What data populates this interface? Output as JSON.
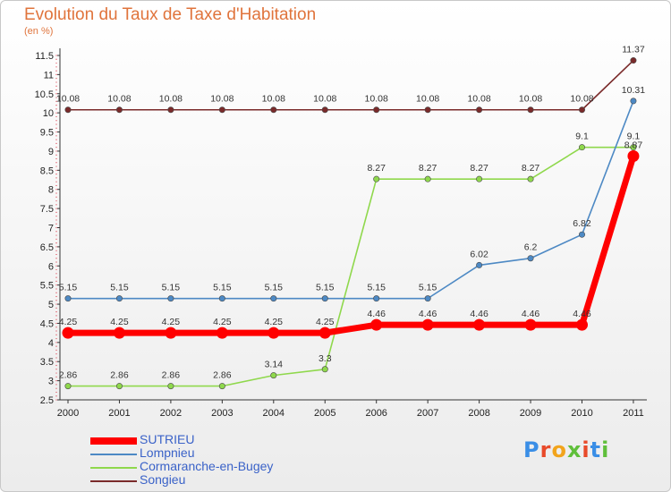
{
  "chart_data": {
    "type": "line",
    "title": "Evolution du Taux de Taxe d'Habitation",
    "unit_label": "(en %)",
    "categories": [
      "2000",
      "2001",
      "2002",
      "2003",
      "2004",
      "2005",
      "2006",
      "2007",
      "2008",
      "2009",
      "2010",
      "2011"
    ],
    "ylim": [
      2.5,
      11.5
    ],
    "yticks": [
      "2.5",
      "3",
      "3.5",
      "4",
      "4.5",
      "5",
      "5.5",
      "6",
      "6.5",
      "7",
      "7.5",
      "8",
      "8.5",
      "9",
      "9.5",
      "10",
      "10.5",
      "11",
      "11.5"
    ],
    "grid": false,
    "legend_position": "bottom-left",
    "series": [
      {
        "name": "SUTRIEU",
        "color": "#ff0000",
        "values": [
          4.25,
          4.25,
          4.25,
          4.25,
          4.25,
          4.25,
          4.46,
          4.46,
          4.46,
          4.46,
          4.46,
          8.87
        ],
        "labels": [
          "4.25",
          "4.25",
          "4.25",
          "4.25",
          "4.25",
          "4.25",
          "4.46",
          "4.46",
          "4.46",
          "4.46",
          "4.46",
          "8.87"
        ]
      },
      {
        "name": "Lompnieu",
        "color": "#4d89c4",
        "values": [
          5.15,
          5.15,
          5.15,
          5.15,
          5.15,
          5.15,
          5.15,
          5.15,
          6.02,
          6.2,
          6.82,
          10.31
        ],
        "labels": [
          "5.15",
          "5.15",
          "5.15",
          "5.15",
          "5.15",
          "5.15",
          "5.15",
          "5.15",
          "6.02",
          "6.2",
          "6.82",
          "10.31"
        ]
      },
      {
        "name": "Cormaranche-en-Bugey",
        "color": "#8fd84c",
        "values": [
          2.86,
          2.86,
          2.86,
          2.86,
          3.14,
          3.3,
          8.27,
          8.27,
          8.27,
          8.27,
          9.1,
          9.1
        ],
        "labels": [
          "2.86",
          "2.86",
          "2.86",
          "2.86",
          "3.14",
          "3.3",
          "8.27",
          "8.27",
          "8.27",
          "8.27",
          "9.1",
          "9.1"
        ]
      },
      {
        "name": "Songieu",
        "color": "#7a2a2a",
        "values": [
          10.08,
          10.08,
          10.08,
          10.08,
          10.08,
          10.08,
          10.08,
          10.08,
          10.08,
          10.08,
          10.08,
          11.37
        ],
        "labels": [
          "10.08",
          "10.08",
          "10.08",
          "10.08",
          "10.08",
          "10.08",
          "10.08",
          "10.08",
          "10.08",
          "10.08",
          "10.08",
          "11.37"
        ]
      }
    ]
  },
  "logo": {
    "text": "Proxiti",
    "colors": [
      "#3a8ee6",
      "#e84a2a",
      "#f2a41c",
      "#5fbf3a",
      "#e84a2a",
      "#3a8ee6",
      "#5fbf3a"
    ]
  }
}
